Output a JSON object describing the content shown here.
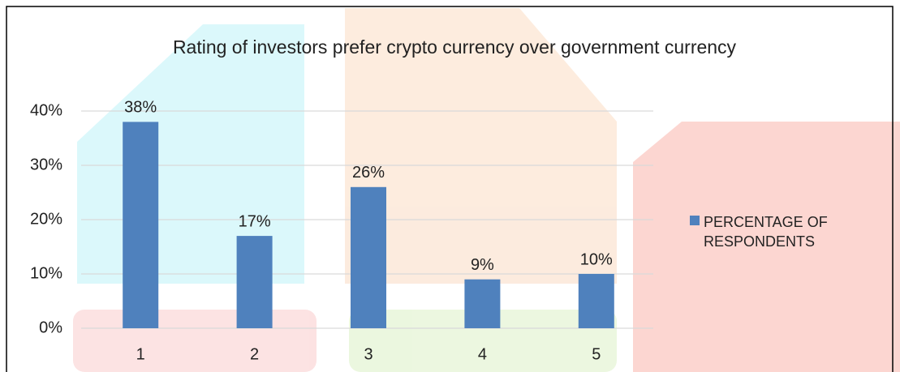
{
  "chart_data": {
    "type": "bar",
    "title": "Rating of investors prefer crypto currency over government currency",
    "categories": [
      "1",
      "2",
      "3",
      "4",
      "5"
    ],
    "series": [
      {
        "name": "PERCENTAGE OF RESPONDENTS",
        "color": "#4f81bd",
        "values": [
          38,
          17,
          26,
          9,
          10
        ],
        "value_labels": [
          "38%",
          "17%",
          "26%",
          "9%",
          "10%"
        ]
      }
    ],
    "ylim": [
      0,
      40
    ],
    "yticks": [
      {
        "value": 0,
        "label": "0%"
      },
      {
        "value": 10,
        "label": "10%"
      },
      {
        "value": 20,
        "label": "20%"
      },
      {
        "value": 30,
        "label": "30%"
      },
      {
        "value": 40,
        "label": "40%"
      }
    ],
    "grid": true,
    "legend": "right"
  }
}
